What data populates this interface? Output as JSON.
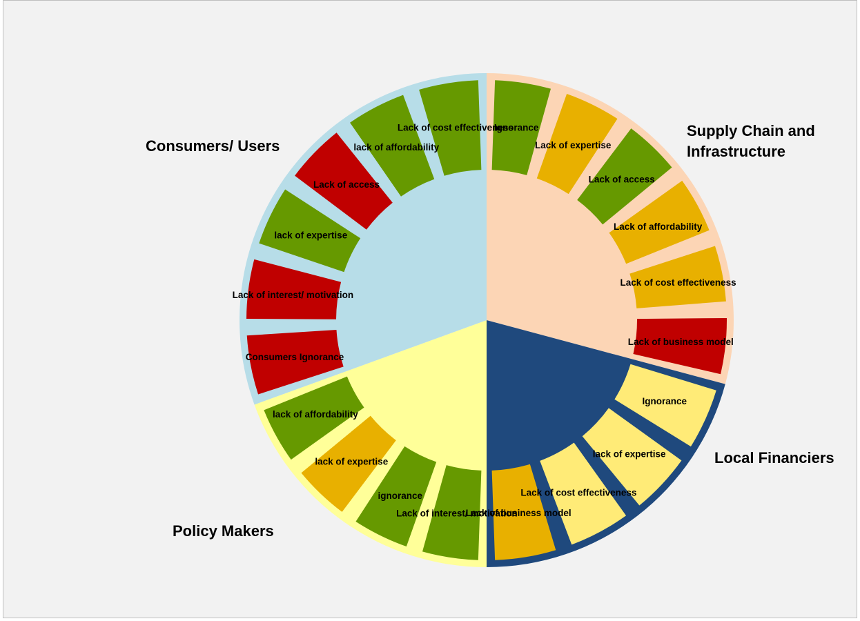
{
  "colors": {
    "background": "#f2f2f2",
    "green": "#669900",
    "red": "#c00000",
    "orange": "#e8b000",
    "light_yellow": "#ffeb77"
  },
  "chart_data": {
    "type": "pie",
    "subtype": "sunburst",
    "grid": false,
    "legend": "none",
    "groups": [
      {
        "name": "Supply Chain and Infrastructure",
        "name_lines": [
          "Supply Chain and",
          "Infrastructure"
        ],
        "color": "#fcd5b5",
        "start_deg": 0,
        "end_deg": 105,
        "segments": [
          {
            "label": "Ignorance",
            "color": "#669900"
          },
          {
            "label": "Lack of expertise",
            "color": "#e8b000"
          },
          {
            "label": "Lack of access",
            "color": "#669900"
          },
          {
            "label": "Lack of affordability",
            "color": "#e8b000"
          },
          {
            "label": "Lack of cost effectiveness",
            "color": "#e8b000"
          },
          {
            "label": "Lack of business model",
            "color": "#c00000"
          }
        ]
      },
      {
        "name": "Local Financiers",
        "name_lines": [
          "Local Financiers"
        ],
        "color": "#1f497d",
        "start_deg": 105,
        "end_deg": 180,
        "segments": [
          {
            "label": "Ignorance",
            "color": "#ffeb77"
          },
          {
            "label": "lack of expertise",
            "color": "#ffeb77"
          },
          {
            "label": "Lack of cost effectiveness",
            "color": "#ffeb77"
          },
          {
            "label": "Lack of business model",
            "color": "#e8b000"
          }
        ]
      },
      {
        "name": "Policy Makers",
        "name_lines": [
          "Policy Makers"
        ],
        "color": "#ffff99",
        "start_deg": 180,
        "end_deg": 250,
        "segments": [
          {
            "label": "Lack of interest/ motivation",
            "color": "#669900"
          },
          {
            "label": "ignorance",
            "color": "#669900"
          },
          {
            "label": "lack of expertise",
            "color": "#e8b000"
          },
          {
            "label": "lack of affordability",
            "color": "#669900"
          }
        ]
      },
      {
        "name": "Consumers/ Users",
        "name_lines": [
          "Consumers/ Users"
        ],
        "color": "#b7dde8",
        "start_deg": 250,
        "end_deg": 360,
        "segments": [
          {
            "label": "Consumers Ignorance",
            "color": "#c00000"
          },
          {
            "label": "Lack of interest/ motivation",
            "color": "#c00000"
          },
          {
            "label": "lack of expertise",
            "color": "#669900"
          },
          {
            "label": "Lack of access",
            "color": "#c00000"
          },
          {
            "label": "lack of affordability",
            "color": "#669900"
          },
          {
            "label": "Lack of cost effectiveness",
            "color": "#669900"
          }
        ]
      }
    ]
  }
}
